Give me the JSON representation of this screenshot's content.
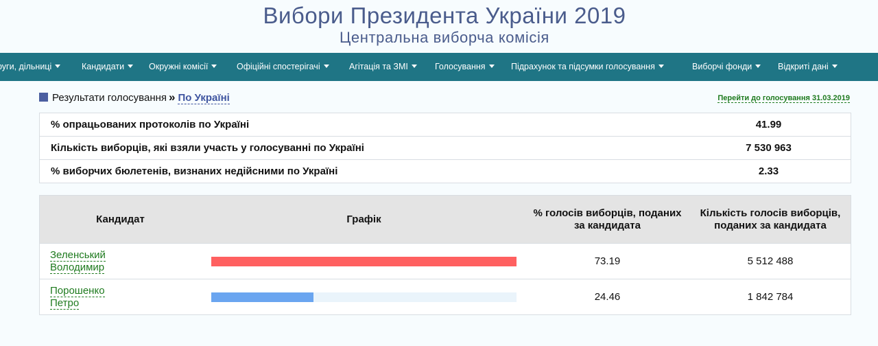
{
  "header": {
    "title": "Вибори Президента України 2019",
    "subtitle": "Центральна виборча комісія"
  },
  "nav": {
    "items": [
      {
        "label": "руги, дільниці"
      },
      {
        "label": "Кандидати"
      },
      {
        "label": "Окружні комісії"
      },
      {
        "label": "Офіційні спостерігачі"
      },
      {
        "label": "Агітація та ЗМІ"
      },
      {
        "label": "Голосування"
      },
      {
        "label": "Підрахунок та підсумки голосування"
      },
      {
        "label": "Виборчі фонди"
      },
      {
        "label": "Відкриті дані"
      }
    ]
  },
  "breadcrumb": {
    "label": "Результати голосування",
    "separator": "»",
    "link": "По Україні"
  },
  "goto_link": "Перейти до голосування 31.03.2019",
  "summary": [
    {
      "label": "% опрацьованих протоколів по Україні",
      "value": "41.99"
    },
    {
      "label": "Кількість виборців, які взяли участь у голосуванні по Україні",
      "value": "7 530 963"
    },
    {
      "label": "% виборчих бюлетенів, визнаних недійсними по Україні",
      "value": "2.33"
    }
  ],
  "results": {
    "headers": {
      "candidate": "Кандидат",
      "chart": "Графік",
      "percent": "% голосів виборців, поданих за кандидата",
      "votes": "Кількість голосів виборців, поданих за кандидата"
    },
    "rows": [
      {
        "name_line1": "Зеленський",
        "name_line2": "Володимир",
        "percent": "73.19",
        "votes": "5 512 488",
        "bar_fraction": 1.0,
        "bar_color": "#ff6060"
      },
      {
        "name_line1": "Порошенко",
        "name_line2": "Петро",
        "percent": "24.46",
        "votes": "1 842 784",
        "bar_fraction": 0.334,
        "bar_color": "#6aa5f0"
      }
    ]
  },
  "colors": {
    "title": "#4a5c8c",
    "navbar": "#1f7585",
    "link_green": "#1e7a1e",
    "link_blue": "#3f55a0"
  }
}
